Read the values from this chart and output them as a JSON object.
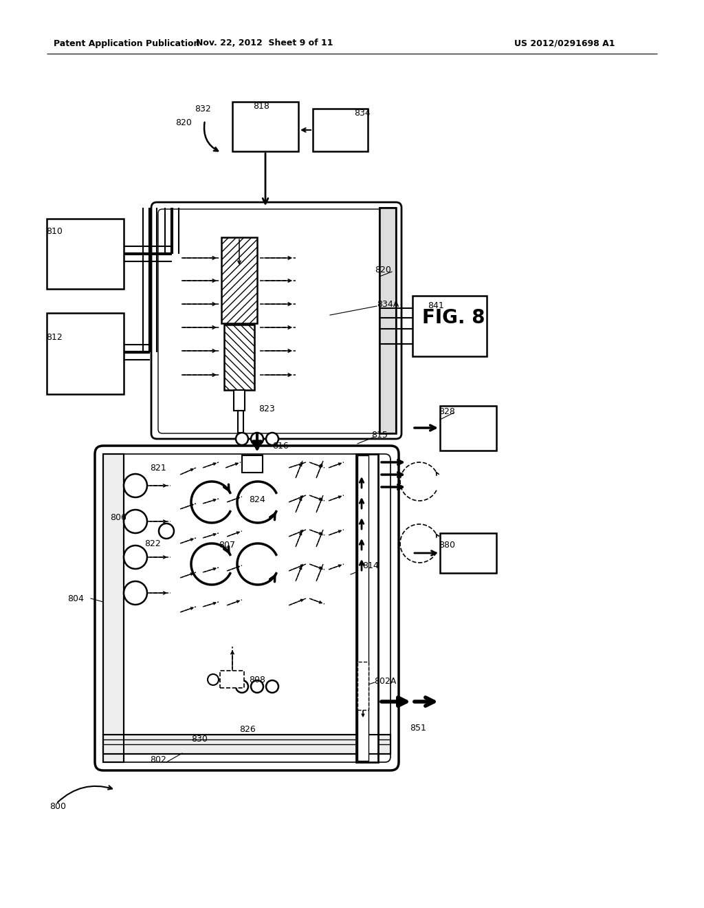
{
  "bg_color": "#ffffff",
  "header_left": "Patent Application Publication",
  "header_center": "Nov. 22, 2012  Sheet 9 of 11",
  "header_right": "US 2012/0291698 A1",
  "fig_label": "FIG. 8"
}
